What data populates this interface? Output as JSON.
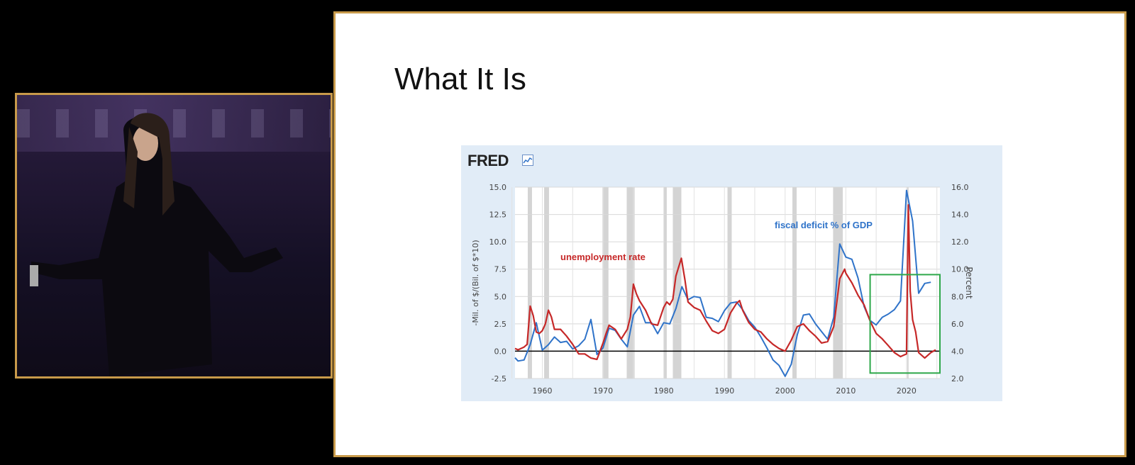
{
  "slide": {
    "title": "What It Is"
  },
  "chart_panel": {
    "logo": "FRED"
  },
  "chart_data": {
    "type": "line",
    "title": "",
    "xlabel": "",
    "ylabel_left": "-Mil. of $/(Bil. of $*10)",
    "ylabel_right": "Percent",
    "xlim": [
      1955.5,
      2025.5
    ],
    "ylim_left": [
      -2.5,
      15.0
    ],
    "ylim_right": [
      2.0,
      16.0
    ],
    "x_ticks": [
      1960,
      1970,
      1980,
      1990,
      2000,
      2010,
      2020
    ],
    "y_left_ticks": [
      "-2.5",
      "0.0",
      "2.5",
      "5.0",
      "7.5",
      "10.0",
      "12.5",
      "15.0"
    ],
    "y_right_ticks": [
      "2.0",
      "4.0",
      "6.0",
      "8.0",
      "10.0",
      "12.0",
      "14.0",
      "16.0"
    ],
    "grid": true,
    "legend": "inline annotations",
    "zero_line_left": 0.0,
    "recessions": [
      [
        1957.6,
        1958.3
      ],
      [
        1960.3,
        1961.1
      ],
      [
        1969.9,
        1970.9
      ],
      [
        1973.9,
        1975.2
      ],
      [
        1980.0,
        1980.5
      ],
      [
        1981.5,
        1982.9
      ],
      [
        1990.5,
        1991.2
      ],
      [
        2001.2,
        2001.9
      ],
      [
        2007.9,
        2009.5
      ],
      [
        2020.1,
        2020.3
      ]
    ],
    "series": [
      {
        "name": "fiscal deficit % of GDP",
        "axis": "left",
        "color": "#2f73c9",
        "x": [
          1955.5,
          1956,
          1957,
          1958,
          1959,
          1960,
          1961,
          1962,
          1963,
          1964,
          1965,
          1966,
          1967,
          1968,
          1969,
          1970,
          1971,
          1972,
          1973,
          1974,
          1975,
          1976,
          1977,
          1978,
          1979,
          1980,
          1981,
          1982,
          1983,
          1984,
          1985,
          1986,
          1987,
          1988,
          1989,
          1990,
          1991,
          1992,
          1993,
          1994,
          1995,
          1996,
          1997,
          1998,
          1999,
          2000,
          2001,
          2002,
          2003,
          2004,
          2005,
          2006,
          2007,
          2008,
          2009,
          2010,
          2011,
          2012,
          2013,
          2014,
          2015,
          2016,
          2017,
          2018,
          2019,
          2020,
          2021,
          2022,
          2023,
          2024
        ],
        "y": [
          -0.6,
          -0.9,
          -0.8,
          0.6,
          2.6,
          0.1,
          0.6,
          1.3,
          0.8,
          0.9,
          0.2,
          0.5,
          1.1,
          2.9,
          -0.3,
          0.3,
          2.1,
          1.9,
          1.1,
          0.4,
          3.3,
          4.1,
          2.6,
          2.6,
          1.6,
          2.6,
          2.5,
          3.9,
          5.9,
          4.7,
          5.0,
          4.9,
          3.1,
          3.0,
          2.7,
          3.7,
          4.4,
          4.5,
          3.8,
          2.8,
          2.2,
          1.3,
          0.3,
          -0.8,
          -1.3,
          -2.3,
          -1.2,
          1.5,
          3.3,
          3.4,
          2.5,
          1.8,
          1.1,
          3.1,
          9.8,
          8.6,
          8.4,
          6.7,
          4.1,
          2.8,
          2.4,
          3.1,
          3.4,
          3.8,
          4.6,
          14.7,
          11.9,
          5.3,
          6.2,
          6.3
        ]
      },
      {
        "name": "unemployment rate",
        "axis": "right",
        "color": "#c62828",
        "x": [
          1955.5,
          1956,
          1957,
          1957.5,
          1958,
          1958.5,
          1959,
          1959.5,
          1960,
          1960.5,
          1961,
          1961.5,
          1962,
          1963,
          1964,
          1965,
          1966,
          1967,
          1968,
          1969,
          1970,
          1970.5,
          1971,
          1972,
          1973,
          1974,
          1974.5,
          1975,
          1975.5,
          1976,
          1977,
          1978,
          1979,
          1980,
          1980.5,
          1981,
          1981.5,
          1982,
          1982.9,
          1983.5,
          1984,
          1985,
          1986,
          1987,
          1988,
          1989,
          1990,
          1991,
          1992,
          1992.5,
          1993,
          1994,
          1995,
          1996,
          1997,
          1998,
          1999,
          2000,
          2001,
          2002,
          2003,
          2004,
          2005,
          2006,
          2007,
          2008,
          2009,
          2009.8,
          2010,
          2011,
          2012,
          2013,
          2014,
          2015,
          2016,
          2017,
          2018,
          2019,
          2020.0,
          2020.3,
          2020.6,
          2021,
          2021.5,
          2022,
          2023,
          2024,
          2024.8
        ],
        "y": [
          4.2,
          4.1,
          4.3,
          4.5,
          7.3,
          6.6,
          5.4,
          5.3,
          5.5,
          6.0,
          7.0,
          6.5,
          5.6,
          5.6,
          5.1,
          4.5,
          3.8,
          3.8,
          3.5,
          3.4,
          4.6,
          5.3,
          5.9,
          5.6,
          4.9,
          5.6,
          6.5,
          8.9,
          8.2,
          7.7,
          7.0,
          6.0,
          5.9,
          7.2,
          7.6,
          7.4,
          7.8,
          9.5,
          10.8,
          9.2,
          7.6,
          7.2,
          7.0,
          6.2,
          5.5,
          5.3,
          5.6,
          6.8,
          7.5,
          7.7,
          7.0,
          6.1,
          5.6,
          5.4,
          4.9,
          4.5,
          4.2,
          4.0,
          4.8,
          5.8,
          6.0,
          5.5,
          5.1,
          4.6,
          4.7,
          5.8,
          9.3,
          10.0,
          9.7,
          9.0,
          8.1,
          7.4,
          6.2,
          5.3,
          4.9,
          4.4,
          3.9,
          3.6,
          3.8,
          14.7,
          8.4,
          6.3,
          5.4,
          3.9,
          3.5,
          3.9,
          4.1
        ]
      }
    ],
    "annotations": [
      {
        "text": "unemployment rate",
        "color": "#c62828"
      },
      {
        "text": "fiscal deficit % of GDP",
        "color": "#2f73c9"
      }
    ],
    "highlight_box": {
      "x": [
        2014.0,
        2025.5
      ],
      "y_left": [
        -2.0,
        7.0
      ],
      "color": "#2ea84a"
    }
  }
}
